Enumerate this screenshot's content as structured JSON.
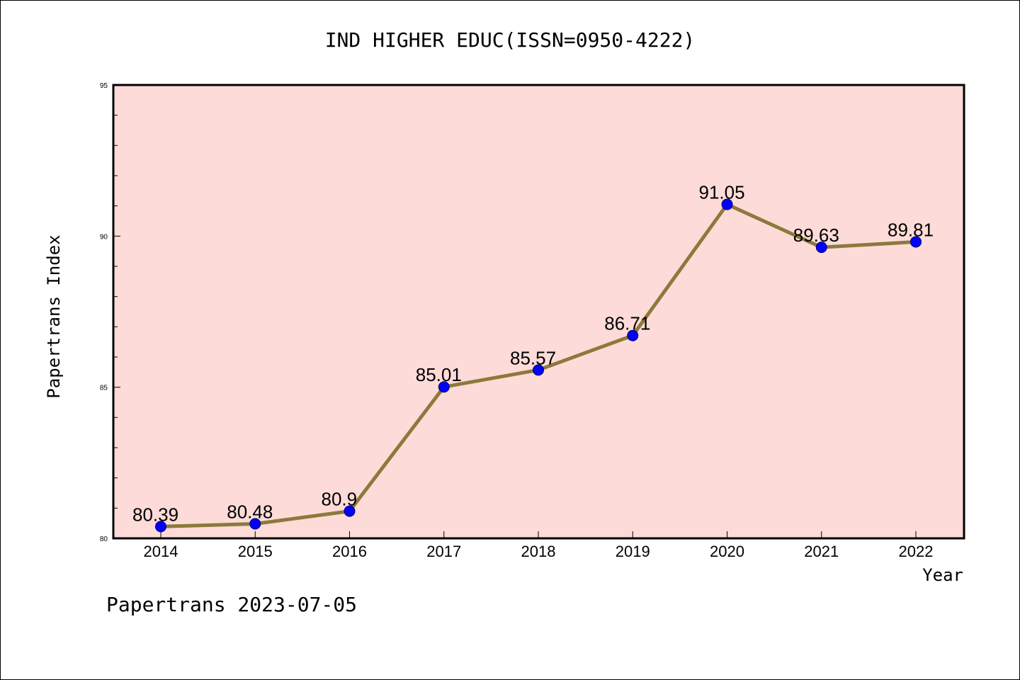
{
  "colors": {
    "plot_background": "#fddbd8",
    "line": "#8b7a3c",
    "marker": "#0000ff",
    "marker_edge": "#000066"
  },
  "chart_data": {
    "type": "line",
    "title": "IND HIGHER EDUC(ISSN=0950-4222)",
    "xlabel": "Year",
    "ylabel": "Papertrans Index",
    "categories": [
      "2014",
      "2015",
      "2016",
      "2017",
      "2018",
      "2019",
      "2020",
      "2021",
      "2022"
    ],
    "values": [
      80.39,
      80.48,
      80.9,
      85.01,
      85.57,
      86.71,
      91.05,
      89.63,
      89.81
    ],
    "data_labels": [
      "80.39",
      "80.48",
      "80.9",
      "85.01",
      "85.57",
      "86.71",
      "91.05",
      "89.63",
      "89.81"
    ],
    "ylim": [
      80,
      95
    ],
    "yticks": [
      "80",
      "85",
      "90",
      "95"
    ],
    "ytick_values": [
      80,
      85,
      90,
      95
    ],
    "grid": false,
    "legend": "none"
  },
  "footer": "Papertrans 2023-07-05"
}
